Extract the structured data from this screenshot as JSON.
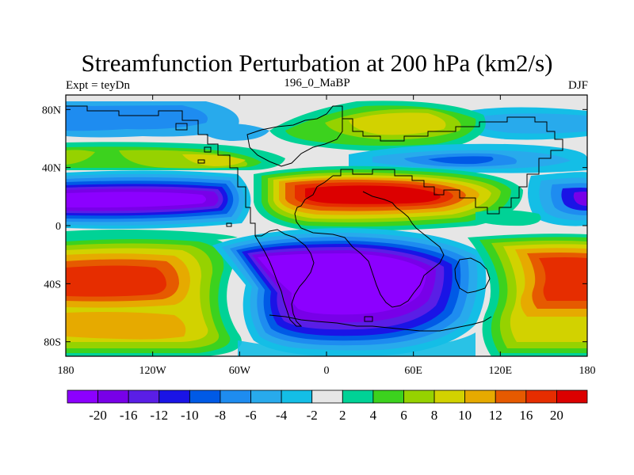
{
  "header": {
    "title": "Streamfunction Perturbation at 200 hPa (km2/s)",
    "left_label": "Expt = teyDn",
    "center_label": "196_0_MaBP",
    "right_label": "DJF"
  },
  "chart_data": {
    "type": "heatmap",
    "title": "Streamfunction Perturbation at 200 hPa (km2/s)",
    "variable": "streamfunction perturbation",
    "units": "km2/s",
    "level": "200 hPa",
    "season": "DJF",
    "experiment": "teyDn",
    "x_range": [
      -180,
      180
    ],
    "y_range": [
      -90,
      90
    ],
    "x_ticks": [
      {
        "value": -180,
        "label": "180"
      },
      {
        "value": -120,
        "label": "120W"
      },
      {
        "value": -60,
        "label": "60W"
      },
      {
        "value": 0,
        "label": "0"
      },
      {
        "value": 60,
        "label": "60E"
      },
      {
        "value": 120,
        "label": "120E"
      },
      {
        "value": 180,
        "label": "180"
      }
    ],
    "y_ticks": [
      {
        "value": 80,
        "label": "80N"
      },
      {
        "value": 40,
        "label": "40N"
      },
      {
        "value": 0,
        "label": "0"
      },
      {
        "value": -40,
        "label": "40S"
      },
      {
        "value": -80,
        "label": "80S"
      }
    ],
    "colorbar": {
      "labels": [
        "-20",
        "-16",
        "-12",
        "-10",
        "-8",
        "-6",
        "-4",
        "-2",
        "2",
        "4",
        "6",
        "8",
        "10",
        "12",
        "16",
        "20"
      ],
      "colors": [
        "#8c00ff",
        "#7800e8",
        "#5a1ee6",
        "#1a14e6",
        "#005ae6",
        "#1e8cf0",
        "#28aaec",
        "#14bee6",
        "#e6e6e6",
        "#00d296",
        "#3cd21e",
        "#96d200",
        "#d2d200",
        "#e6aa00",
        "#e65a00",
        "#e62d00",
        "#dc0000"
      ]
    },
    "features": [
      {
        "name": "tropical-north-pacific-low",
        "lon": -145,
        "lat": 20,
        "value": -21
      },
      {
        "name": "africa-arabia-high",
        "lon": 35,
        "lat": 22,
        "value": 22
      },
      {
        "name": "north-pacific-high-band",
        "lon": -130,
        "lat": 47,
        "value": 6
      },
      {
        "name": "north-atlantic-europe-high",
        "lon": 40,
        "lat": 72,
        "value": 9
      },
      {
        "name": "arctic-low",
        "lon": -105,
        "lat": 78,
        "value": -4
      },
      {
        "name": "central-asia-low",
        "lon": 90,
        "lat": 48,
        "value": -8
      },
      {
        "name": "east-pacific-low",
        "lon": 160,
        "lat": 22,
        "value": -12
      },
      {
        "name": "south-pacific-high",
        "lon": -150,
        "lat": -30,
        "value": 18
      },
      {
        "name": "south-pacific-high-2",
        "lon": -130,
        "lat": -60,
        "value": 12
      },
      {
        "name": "south-atlantic-africa-low",
        "lon": 20,
        "lat": -40,
        "value": -21
      },
      {
        "name": "indian-ocean-high",
        "lon": 160,
        "lat": -35,
        "value": 18
      },
      {
        "name": "south-america-low",
        "lon": -40,
        "lat": -30,
        "value": -12
      }
    ]
  }
}
